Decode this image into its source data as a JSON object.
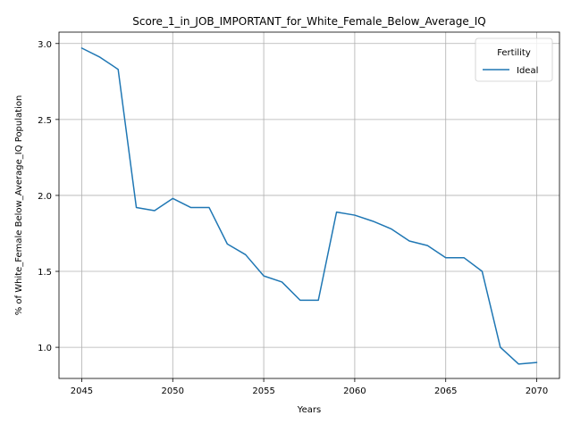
{
  "chart_data": {
    "type": "line",
    "title": "Score_1_in_JOB_IMPORTANT_for_White_Female_Below_Average_IQ",
    "xlabel": "Years",
    "ylabel": "% of White_Female Below_Average_IQ Population",
    "xlim": [
      2043.75,
      2071.25
    ],
    "ylim": [
      0.795,
      3.075
    ],
    "xticks": [
      2045,
      2050,
      2055,
      2060,
      2065,
      2070
    ],
    "yticks": [
      1.0,
      1.5,
      2.0,
      2.5,
      3.0
    ],
    "xtick_labels": [
      "2045",
      "2050",
      "2055",
      "2060",
      "2065",
      "2070"
    ],
    "ytick_labels": [
      "1.0",
      "1.5",
      "2.0",
      "2.5",
      "3.0"
    ],
    "grid": true,
    "legend": {
      "title": "Fertility",
      "position": "top-right"
    },
    "series": [
      {
        "name": "Ideal",
        "color": "#1f77b4",
        "x": [
          2045,
          2046,
          2047,
          2048,
          2049,
          2050,
          2051,
          2052,
          2053,
          2054,
          2055,
          2056,
          2057,
          2058,
          2059,
          2060,
          2061,
          2062,
          2063,
          2064,
          2065,
          2066,
          2067,
          2068,
          2069,
          2070
        ],
        "y": [
          2.97,
          2.91,
          2.83,
          1.92,
          1.9,
          1.98,
          1.92,
          1.92,
          1.68,
          1.61,
          1.47,
          1.43,
          1.31,
          1.31,
          1.89,
          1.87,
          1.83,
          1.78,
          1.7,
          1.67,
          1.59,
          1.59,
          1.5,
          1.0,
          0.89,
          0.9
        ]
      }
    ]
  }
}
